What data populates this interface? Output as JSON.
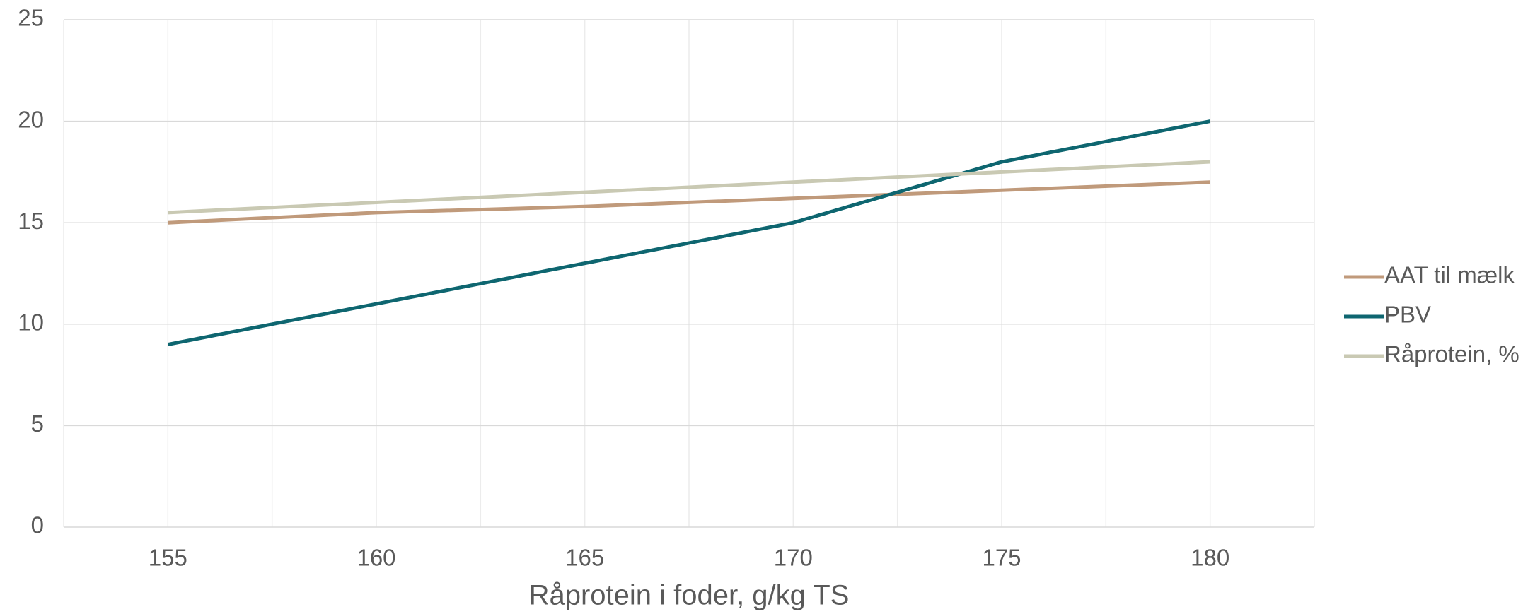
{
  "chart_data": {
    "type": "line",
    "x_label": "Råprotein i foder, g/kg TS",
    "categories": [
      "155",
      "160",
      "165",
      "170",
      "175",
      "180"
    ],
    "series": [
      {
        "name": "AAT til mælk",
        "color": "#c09a7b",
        "values": [
          15,
          15.5,
          15.8,
          16.2,
          16.6,
          17
        ]
      },
      {
        "name": "PBV",
        "color": "#0e6670",
        "values": [
          9,
          11,
          13,
          15,
          18,
          20
        ]
      },
      {
        "name": "Råprotein, %",
        "color": "#c9c9b3",
        "values": [
          15.5,
          16,
          16.5,
          17,
          17.5,
          18
        ]
      }
    ],
    "ylim": [
      0,
      25
    ],
    "yticks": [
      0,
      5,
      10,
      15,
      20,
      25
    ],
    "grid": true,
    "legend": "right"
  }
}
